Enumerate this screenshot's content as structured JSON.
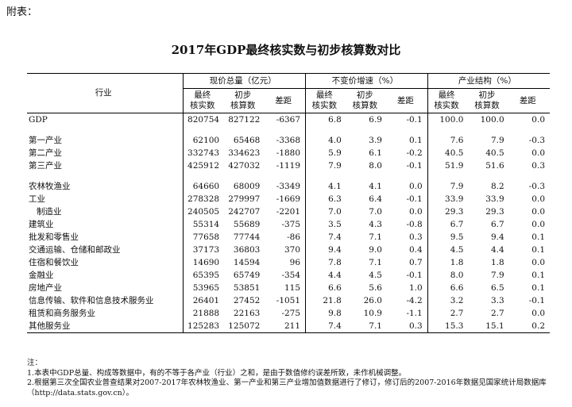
{
  "appendix_label": "附表：",
  "title": "2017年GDP最终核实数与初步核算数对比",
  "header": {
    "industry": "行业",
    "groups": [
      "现价总量（亿元）",
      "不变价增速（%）",
      "产业结构（%）"
    ],
    "sub": [
      "最终\n核实数",
      "初步\n核算数",
      "差距"
    ]
  },
  "rows": [
    {
      "name": "GDP",
      "vals": [
        "820754",
        "827122",
        "-6367",
        "6.8",
        "6.9",
        "-0.1",
        "100.0",
        "100.0",
        "0.0"
      ]
    },
    {
      "spacer": true
    },
    {
      "name": "第一产业",
      "vals": [
        "62100",
        "65468",
        "-3368",
        "4.0",
        "3.9",
        "0.1",
        "7.6",
        "7.9",
        "-0.3"
      ]
    },
    {
      "name": "第二产业",
      "vals": [
        "332743",
        "334623",
        "-1880",
        "5.9",
        "6.1",
        "-0.2",
        "40.5",
        "40.5",
        "0.0"
      ]
    },
    {
      "name": "第三产业",
      "vals": [
        "425912",
        "427032",
        "-1119",
        "7.9",
        "8.0",
        "-0.1",
        "51.9",
        "51.6",
        "0.3"
      ]
    },
    {
      "spacer": true
    },
    {
      "name": "农林牧渔业",
      "vals": [
        "64660",
        "68009",
        "-3349",
        "4.1",
        "4.1",
        "0.0",
        "7.9",
        "8.2",
        "-0.3"
      ]
    },
    {
      "name": "工业",
      "vals": [
        "278328",
        "279997",
        "-1669",
        "6.3",
        "6.4",
        "-0.1",
        "33.9",
        "33.9",
        "0.0"
      ]
    },
    {
      "name": "制造业",
      "indent": true,
      "vals": [
        "240505",
        "242707",
        "-2201",
        "7.0",
        "7.0",
        "0.0",
        "29.3",
        "29.3",
        "0.0"
      ]
    },
    {
      "name": "建筑业",
      "vals": [
        "55314",
        "55689",
        "-375",
        "3.5",
        "4.3",
        "-0.8",
        "6.7",
        "6.7",
        "0.0"
      ]
    },
    {
      "name": "批发和零售业",
      "vals": [
        "77658",
        "77744",
        "-86",
        "7.4",
        "7.1",
        "0.3",
        "9.5",
        "9.4",
        "0.1"
      ]
    },
    {
      "name": "交通运输、仓储和邮政业",
      "vals": [
        "37173",
        "36803",
        "370",
        "9.4",
        "9.0",
        "0.4",
        "4.5",
        "4.4",
        "0.1"
      ]
    },
    {
      "name": "住宿和餐饮业",
      "vals": [
        "14690",
        "14594",
        "96",
        "7.8",
        "7.1",
        "0.7",
        "1.8",
        "1.8",
        "0.0"
      ]
    },
    {
      "name": "金融业",
      "vals": [
        "65395",
        "65749",
        "-354",
        "4.4",
        "4.5",
        "-0.1",
        "8.0",
        "7.9",
        "0.1"
      ]
    },
    {
      "name": "房地产业",
      "vals": [
        "53965",
        "53851",
        "115",
        "6.6",
        "5.6",
        "1.0",
        "6.6",
        "6.5",
        "0.1"
      ]
    },
    {
      "name": "信息传输、软件和信息技术服务业",
      "vals": [
        "26401",
        "27452",
        "-1051",
        "21.8",
        "26.0",
        "-4.2",
        "3.2",
        "3.3",
        "-0.1"
      ]
    },
    {
      "name": "租赁和商务服务业",
      "vals": [
        "21888",
        "22163",
        "-275",
        "9.8",
        "10.9",
        "-1.1",
        "2.7",
        "2.7",
        "0.0"
      ]
    },
    {
      "name": "其他服务业",
      "vals": [
        "125283",
        "125072",
        "211",
        "7.4",
        "7.1",
        "0.3",
        "15.3",
        "15.1",
        "0.2"
      ]
    }
  ],
  "notes": [
    "注：",
    "1.本表中GDP总量、构成等数据中，有的不等于各产业（行业）之和，是由于数值修约误差所致，未作机械调整。",
    "2.根据第三次全国农业普查结果对2007-2017年农林牧渔业、第一产业和第三产业增加值数据进行了修订，修订后的2007-2016年数据见国家统计局数据库（http://data.stats.gov.cn）。"
  ]
}
